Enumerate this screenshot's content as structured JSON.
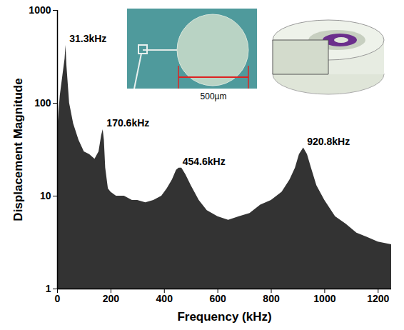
{
  "chart_data": {
    "type": "area",
    "x_label": "Frequency (kHz)",
    "y_label": "Displacement Magnitude",
    "color": "#333333",
    "log": "y",
    "grid": false,
    "xlim": [
      0,
      1250
    ],
    "xticks": [
      0,
      200,
      400,
      600,
      800,
      1000,
      1200
    ],
    "ylim": [
      1,
      1000
    ],
    "yticks": [
      1,
      10,
      100,
      1000
    ],
    "x": [
      2,
      10,
      20,
      28,
      31.3,
      35,
      45,
      60,
      80,
      100,
      120,
      140,
      155,
      165,
      170.6,
      175,
      180,
      190,
      200,
      220,
      250,
      280,
      300,
      330,
      360,
      390,
      410,
      430,
      445,
      454.6,
      465,
      480,
      500,
      530,
      560,
      600,
      640,
      680,
      720,
      760,
      800,
      840,
      870,
      890,
      905,
      920.8,
      935,
      950,
      970,
      1000,
      1040,
      1080,
      1120,
      1160,
      1200,
      1250
    ],
    "values": [
      60,
      120,
      200,
      300,
      420,
      250,
      100,
      60,
      40,
      30,
      28,
      25,
      30,
      45,
      52,
      40,
      20,
      12,
      11,
      10,
      10,
      9,
      9,
      8.5,
      9,
      10,
      12,
      15,
      19,
      20,
      20,
      17,
      13,
      9,
      7,
      6,
      5.5,
      6,
      6.5,
      8,
      9,
      11,
      15,
      20,
      28,
      33,
      28,
      20,
      13,
      9,
      6,
      5,
      4,
      3.6,
      3.2,
      3
    ],
    "annotations": [
      {
        "text": "31.3kHz",
        "x": 31.3,
        "y": 420
      },
      {
        "text": "170.6kHz",
        "x": 170.6,
        "y": 52
      },
      {
        "text": "454.6kHz",
        "x": 454.6,
        "y": 20
      },
      {
        "text": "920.8kHz",
        "x": 920.8,
        "y": 33
      }
    ],
    "inset_text": "500µm"
  }
}
